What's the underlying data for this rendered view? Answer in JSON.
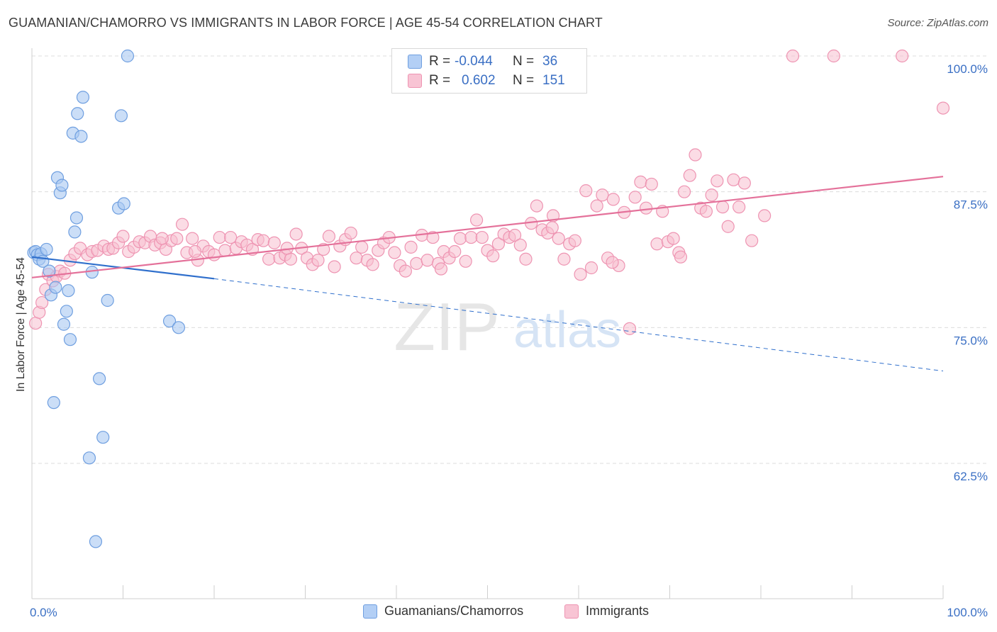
{
  "title": "GUAMANIAN/CHAMORRO VS IMMIGRANTS IN LABOR FORCE | AGE 45-54 CORRELATION CHART",
  "source": "Source: ZipAtlas.com",
  "watermark": {
    "zip": "ZIP",
    "atlas": "atlas"
  },
  "legend": {
    "rows": [
      {
        "r_label": "R =",
        "r_value": "-0.044",
        "n_label": "N =",
        "n_value": "36"
      },
      {
        "r_label": "R =",
        "r_value": "0.602",
        "n_label": "N =",
        "n_value": "151"
      }
    ]
  },
  "bottom_legend": {
    "series1": "Guamanians/Chamorros",
    "series2": "Immigrants"
  },
  "colors": {
    "blue_fill": "#a9c8f2",
    "blue_stroke": "#6f9fe0",
    "blue_line": "#2f6fcc",
    "pink_fill": "#f7bfd0",
    "pink_stroke": "#ee94b2",
    "pink_line": "#e4719a",
    "tick_label": "#3a6fc4",
    "grid": "#dcdcdc"
  },
  "chart_data": {
    "type": "scatter",
    "title": "GUAMANIAN/CHAMORRO VS IMMIGRANTS IN LABOR FORCE | AGE 45-54 CORRELATION CHART",
    "ylabel": "In Labor Force | Age 45-54",
    "xlabel": "",
    "xlim": [
      0,
      100
    ],
    "ylim": [
      50,
      100
    ],
    "x_tick_labels": [
      "0.0%",
      "100.0%"
    ],
    "y_ticks": [
      62.5,
      75.0,
      87.5,
      100.0
    ],
    "y_tick_labels": [
      "62.5%",
      "75.0%",
      "87.5%",
      "100.0%"
    ],
    "grid": true,
    "legend_position": "top-center",
    "series": [
      {
        "name": "Guamanians/Chamorros",
        "R": -0.044,
        "N": 36,
        "trend": {
          "x0": 0,
          "y0": 81.5,
          "x1": 20,
          "y1": 79.5,
          "dash_to_x": 100,
          "dash_to_y": 71.0
        },
        "points": [
          [
            0.2,
            81.9
          ],
          [
            0.4,
            82.0
          ],
          [
            0.6,
            81.7
          ],
          [
            0.8,
            81.3
          ],
          [
            1.0,
            81.8
          ],
          [
            1.2,
            81.1
          ],
          [
            1.6,
            82.2
          ],
          [
            1.9,
            80.2
          ],
          [
            2.1,
            78.0
          ],
          [
            2.4,
            68.1
          ],
          [
            2.6,
            78.7
          ],
          [
            2.8,
            88.8
          ],
          [
            3.1,
            87.4
          ],
          [
            3.3,
            88.1
          ],
          [
            3.5,
            75.3
          ],
          [
            3.8,
            76.5
          ],
          [
            4.0,
            78.4
          ],
          [
            4.2,
            73.9
          ],
          [
            4.5,
            92.9
          ],
          [
            4.7,
            83.8
          ],
          [
            4.9,
            85.1
          ],
          [
            5.0,
            94.7
          ],
          [
            5.4,
            92.6
          ],
          [
            5.6,
            96.2
          ],
          [
            6.3,
            63.0
          ],
          [
            6.6,
            80.1
          ],
          [
            7.0,
            55.3
          ],
          [
            7.4,
            70.3
          ],
          [
            7.8,
            64.9
          ],
          [
            8.3,
            77.5
          ],
          [
            9.5,
            86.0
          ],
          [
            9.8,
            94.5
          ],
          [
            10.1,
            86.4
          ],
          [
            10.5,
            100.0
          ],
          [
            15.1,
            75.6
          ],
          [
            16.1,
            75.0
          ]
        ]
      },
      {
        "name": "Immigrants",
        "R": 0.602,
        "N": 151,
        "trend": {
          "x0": 0,
          "y0": 79.6,
          "x1": 100,
          "y1": 88.9
        },
        "points": [
          [
            0.4,
            75.4
          ],
          [
            0.8,
            76.4
          ],
          [
            1.1,
            77.3
          ],
          [
            1.5,
            78.5
          ],
          [
            1.8,
            79.9
          ],
          [
            2.3,
            79.3
          ],
          [
            2.7,
            79.7
          ],
          [
            3.1,
            80.2
          ],
          [
            3.6,
            80.0
          ],
          [
            4.2,
            81.2
          ],
          [
            4.7,
            81.8
          ],
          [
            5.3,
            82.3
          ],
          [
            6.1,
            81.7
          ],
          [
            6.6,
            82.0
          ],
          [
            7.2,
            82.1
          ],
          [
            7.9,
            82.5
          ],
          [
            8.4,
            82.2
          ],
          [
            8.9,
            82.3
          ],
          [
            9.5,
            82.8
          ],
          [
            10.0,
            83.4
          ],
          [
            10.6,
            82.0
          ],
          [
            11.2,
            82.4
          ],
          [
            11.8,
            82.9
          ],
          [
            12.4,
            82.8
          ],
          [
            13.0,
            83.4
          ],
          [
            13.5,
            82.6
          ],
          [
            14.1,
            82.8
          ],
          [
            14.7,
            82.2
          ],
          [
            15.3,
            83.0
          ],
          [
            15.9,
            83.2
          ],
          [
            16.5,
            84.5
          ],
          [
            17.0,
            81.9
          ],
          [
            17.6,
            83.2
          ],
          [
            18.2,
            81.2
          ],
          [
            18.8,
            82.5
          ],
          [
            19.4,
            82.0
          ],
          [
            20.0,
            81.7
          ],
          [
            20.6,
            83.3
          ],
          [
            21.2,
            82.1
          ],
          [
            21.8,
            83.3
          ],
          [
            22.4,
            82.3
          ],
          [
            23.0,
            82.9
          ],
          [
            23.6,
            82.6
          ],
          [
            24.2,
            82.2
          ],
          [
            24.8,
            83.1
          ],
          [
            25.4,
            83.0
          ],
          [
            26.0,
            81.3
          ],
          [
            26.6,
            82.8
          ],
          [
            27.2,
            81.4
          ],
          [
            27.8,
            81.7
          ],
          [
            28.4,
            81.3
          ],
          [
            29.0,
            83.6
          ],
          [
            29.6,
            82.3
          ],
          [
            30.2,
            81.4
          ],
          [
            30.8,
            80.8
          ],
          [
            31.4,
            81.2
          ],
          [
            32.0,
            82.2
          ],
          [
            32.6,
            83.4
          ],
          [
            33.2,
            80.6
          ],
          [
            33.8,
            82.5
          ],
          [
            34.4,
            83.1
          ],
          [
            35.0,
            83.7
          ],
          [
            35.6,
            81.4
          ],
          [
            36.2,
            82.4
          ],
          [
            36.8,
            81.2
          ],
          [
            37.4,
            80.8
          ],
          [
            38.0,
            82.1
          ],
          [
            38.6,
            82.8
          ],
          [
            39.2,
            83.3
          ],
          [
            39.8,
            81.9
          ],
          [
            40.4,
            80.7
          ],
          [
            41.0,
            80.2
          ],
          [
            41.6,
            82.4
          ],
          [
            42.2,
            80.9
          ],
          [
            42.8,
            83.5
          ],
          [
            43.4,
            81.2
          ],
          [
            44.0,
            83.3
          ],
          [
            44.6,
            80.9
          ],
          [
            45.2,
            82.0
          ],
          [
            45.8,
            81.4
          ],
          [
            46.4,
            82.0
          ],
          [
            47.0,
            83.2
          ],
          [
            47.6,
            81.1
          ],
          [
            48.2,
            83.3
          ],
          [
            48.8,
            84.9
          ],
          [
            49.4,
            83.3
          ],
          [
            50.0,
            82.1
          ],
          [
            50.6,
            81.6
          ],
          [
            51.2,
            82.7
          ],
          [
            51.8,
            83.6
          ],
          [
            52.4,
            83.3
          ],
          [
            53.0,
            83.5
          ],
          [
            53.6,
            82.6
          ],
          [
            54.2,
            81.3
          ],
          [
            54.8,
            84.6
          ],
          [
            55.4,
            86.2
          ],
          [
            56.0,
            84.0
          ],
          [
            56.6,
            83.7
          ],
          [
            57.2,
            85.3
          ],
          [
            57.8,
            83.2
          ],
          [
            58.4,
            81.3
          ],
          [
            59.0,
            82.7
          ],
          [
            59.6,
            83.0
          ],
          [
            60.2,
            79.9
          ],
          [
            60.8,
            87.6
          ],
          [
            61.4,
            80.5
          ],
          [
            62.0,
            86.2
          ],
          [
            62.6,
            87.2
          ],
          [
            63.2,
            81.4
          ],
          [
            63.8,
            86.8
          ],
          [
            64.4,
            80.7
          ],
          [
            65.0,
            85.6
          ],
          [
            65.6,
            74.9
          ],
          [
            66.2,
            87.0
          ],
          [
            66.8,
            88.4
          ],
          [
            67.4,
            86.0
          ],
          [
            68.0,
            88.2
          ],
          [
            68.6,
            82.7
          ],
          [
            69.2,
            85.7
          ],
          [
            69.8,
            82.9
          ],
          [
            70.4,
            83.2
          ],
          [
            71.0,
            81.9
          ],
          [
            71.6,
            87.5
          ],
          [
            72.2,
            89.0
          ],
          [
            72.8,
            90.9
          ],
          [
            73.4,
            86.0
          ],
          [
            74.0,
            85.7
          ],
          [
            74.6,
            87.2
          ],
          [
            75.2,
            88.5
          ],
          [
            75.8,
            86.1
          ],
          [
            76.4,
            84.3
          ],
          [
            77.0,
            88.6
          ],
          [
            77.6,
            86.1
          ],
          [
            78.2,
            88.3
          ],
          [
            79.0,
            83.0
          ],
          [
            80.4,
            85.3
          ],
          [
            83.5,
            100.0
          ],
          [
            88.0,
            100.0
          ],
          [
            95.5,
            100.0
          ],
          [
            100.0,
            95.2
          ],
          [
            17.9,
            82.0
          ],
          [
            28.0,
            82.3
          ],
          [
            44.9,
            80.4
          ],
          [
            57.1,
            84.2
          ],
          [
            63.7,
            81.0
          ],
          [
            71.2,
            81.5
          ],
          [
            14.3,
            83.2
          ]
        ]
      }
    ]
  }
}
